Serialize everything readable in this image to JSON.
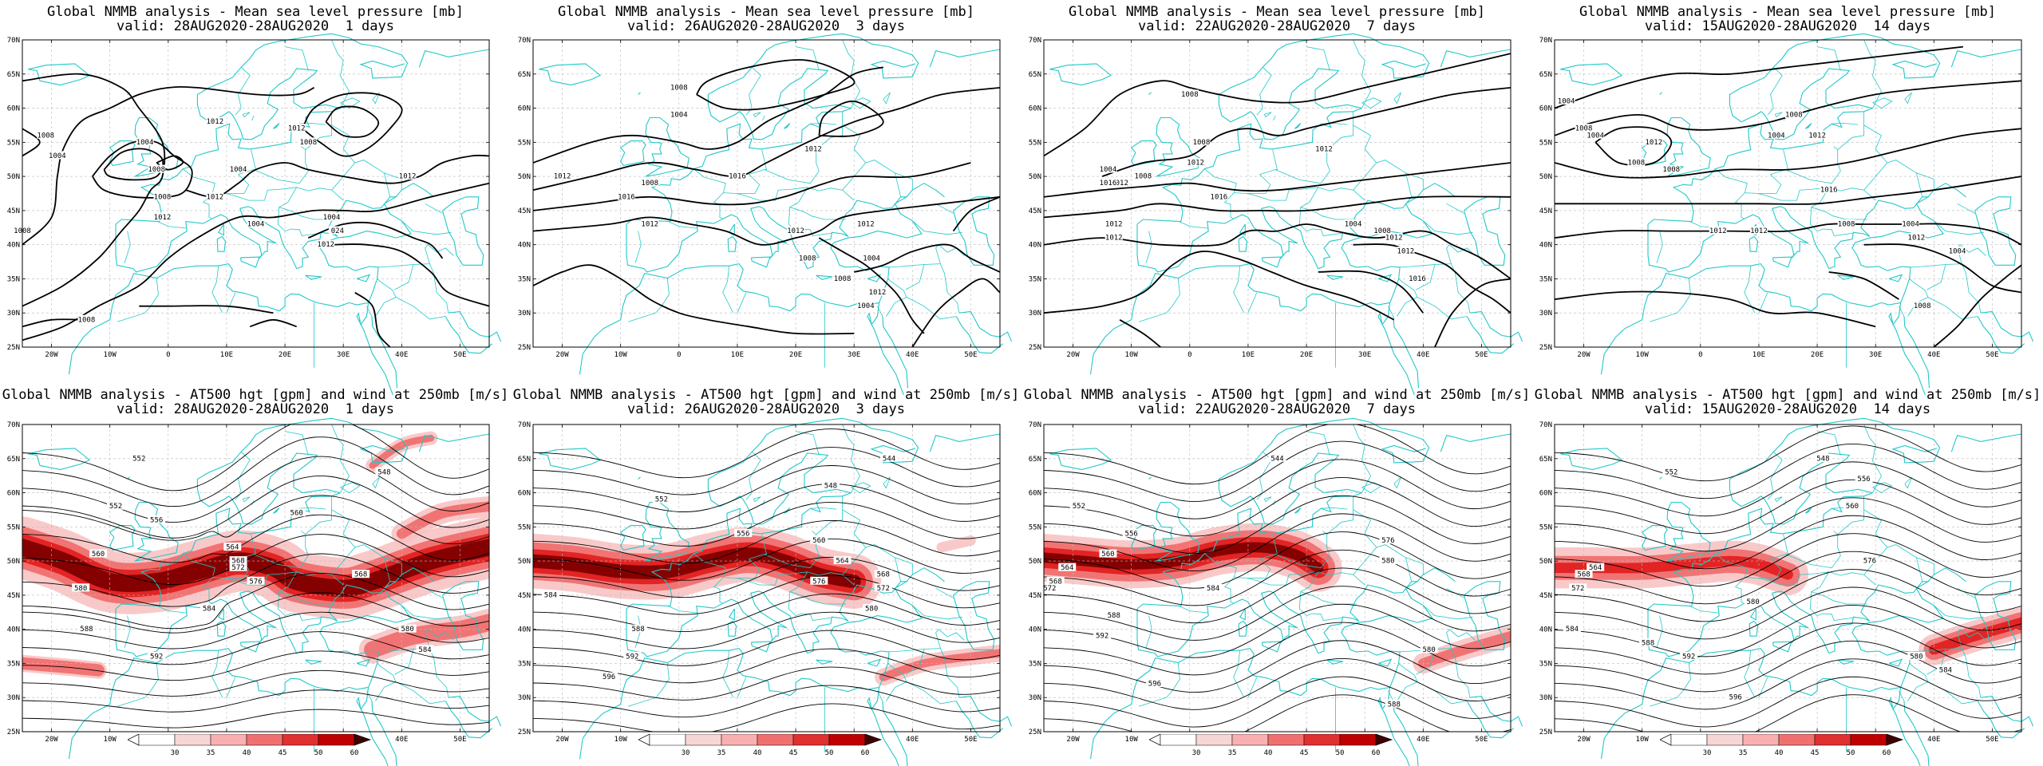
{
  "colors": {
    "coast": "#22c8c8",
    "contour": "#000000",
    "wind_light": "#f8c0c0",
    "wind_mid": "#f07070",
    "wind_strong": "#e02020",
    "wind_max": "#800000",
    "grid": "#bbbbbb"
  },
  "axes": {
    "lat_labels": [
      "70N",
      "65N",
      "60N",
      "55N",
      "50N",
      "45N",
      "40N",
      "35N",
      "30N",
      "25N"
    ],
    "lon_labels": [
      "20W",
      "10W",
      "0",
      "10E",
      "20E",
      "30E",
      "40E",
      "50E"
    ]
  },
  "colorbar": {
    "labels": [
      "30",
      "35",
      "40",
      "45",
      "50",
      "60"
    ]
  },
  "panels": [
    {
      "id": "mslp-1d",
      "title": "Global NMMB analysis - Mean sea level pressure [mb]",
      "subtitle": "valid: 28AUG2020-28AUG2020  1 days",
      "labels": [
        "1012",
        "1008",
        "1004",
        "1004",
        "1008",
        "1012",
        "1008",
        "1004",
        "1012",
        "1012",
        "1008",
        "1012",
        "1008",
        "1004",
        "1004",
        "024",
        "1012",
        "1008"
      ]
    },
    {
      "id": "mslp-3d",
      "title": "Global NMMB analysis - Mean sea level pressure [mb]",
      "subtitle": "valid: 26AUG2020-28AUG2020  3 days",
      "labels": [
        "1008",
        "1004",
        "1012",
        "1008",
        "1012",
        "1016",
        "1016",
        "1012",
        "1012",
        "1012",
        "1008",
        "1004",
        "1008",
        "1012",
        "1004"
      ]
    },
    {
      "id": "mslp-7d",
      "title": "Global NMMB analysis - Mean sea level pressure [mb]",
      "subtitle": "valid: 22AUG2020-28AUG2020  7 days",
      "labels": [
        "1008",
        "1004",
        "1008",
        "1012",
        "1012",
        "1008",
        "1012",
        "1016",
        "1016",
        "1012",
        "1012",
        "1008",
        "1004",
        "1012",
        "1012",
        "1016"
      ]
    },
    {
      "id": "mslp-14d",
      "title": "Global NMMB analysis - Mean sea level pressure [mb]",
      "subtitle": "valid: 15AUG2020-28AUG2020  14 days",
      "labels": [
        "1004",
        "1008",
        "1004",
        "1008",
        "1008",
        "1012",
        "1004",
        "1008",
        "1012",
        "1016",
        "1012",
        "1012",
        "1008",
        "1004",
        "1012",
        "1004",
        "1008"
      ]
    },
    {
      "id": "hgt-1d",
      "title": "Global NMMB analysis - AT500 hgt [gpm] and wind at 250mb [m/s]",
      "subtitle": "valid: 28AUG2020-28AUG2020  1 days",
      "labels": [
        "552",
        "552",
        "556",
        "560",
        "564",
        "568",
        "572",
        "576",
        "580",
        "584",
        "588",
        "592",
        "548",
        "560",
        "568",
        "580",
        "584"
      ]
    },
    {
      "id": "hgt-3d",
      "title": "Global NMMB analysis - AT500 hgt [gpm] and wind at 250mb [m/s]",
      "subtitle": "valid: 26AUG2020-28AUG2020  3 days",
      "labels": [
        "544",
        "548",
        "552",
        "556",
        "560",
        "564",
        "568",
        "572",
        "576",
        "580",
        "584",
        "588",
        "592",
        "596"
      ]
    },
    {
      "id": "hgt-7d",
      "title": "Global NMMB analysis - AT500 hgt [gpm] and wind at 250mb [m/s]",
      "subtitle": "valid: 22AUG2020-28AUG2020  7 days",
      "labels": [
        "544",
        "552",
        "556",
        "560",
        "564",
        "568",
        "572",
        "576",
        "580",
        "584",
        "588",
        "592",
        "596",
        "580",
        "588"
      ]
    },
    {
      "id": "hgt-14d",
      "title": "Global NMMB analysis - AT500 hgt [gpm] and wind at 250mb [m/s]",
      "subtitle": "valid: 15AUG2020-28AUG2020  14 days",
      "labels": [
        "548",
        "552",
        "556",
        "560",
        "564",
        "568",
        "572",
        "576",
        "580",
        "584",
        "588",
        "592",
        "596",
        "580",
        "584"
      ]
    }
  ]
}
